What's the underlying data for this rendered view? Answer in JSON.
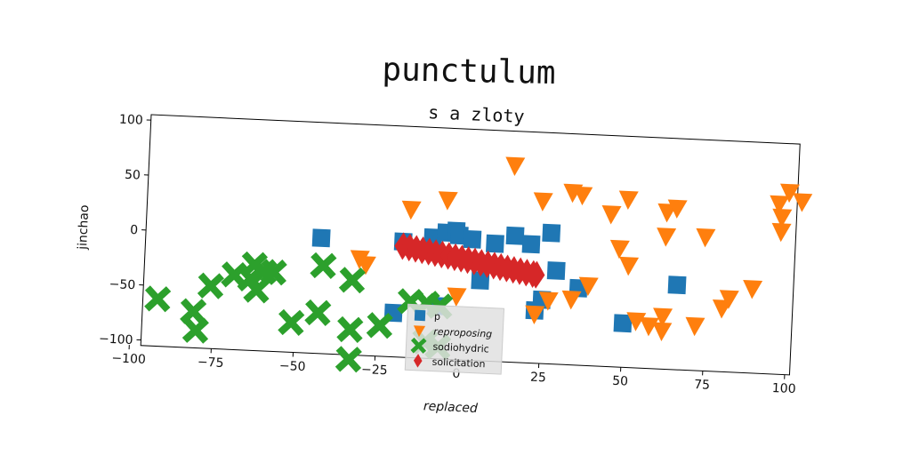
{
  "chart_data": {
    "type": "scatter",
    "suptitle": "punctulum",
    "title": "s a zloty",
    "xlabel": "replaced",
    "ylabel": "jinchao",
    "xlim": [
      -100,
      100
    ],
    "ylim": [
      -105,
      105
    ],
    "xticks": [
      -100,
      -75,
      -50,
      -25,
      0,
      25,
      50,
      75,
      100
    ],
    "yticks": [
      -100,
      -50,
      0,
      50,
      100
    ],
    "xtick_labels": [
      "−100",
      "−75",
      "−50",
      "−25",
      "0",
      "25",
      "50",
      "75",
      "100"
    ],
    "ytick_labels": [
      "−100",
      "−50",
      "0",
      "50",
      "100"
    ],
    "legend_position": "lower-center",
    "series": [
      {
        "name": "p",
        "marker": "square",
        "color": "#1f77b4",
        "points": [
          [
            -43,
            0
          ],
          [
            -18,
            0
          ],
          [
            -9,
            5
          ],
          [
            -5,
            10
          ],
          [
            -2,
            12
          ],
          [
            -1,
            8
          ],
          [
            3,
            5
          ],
          [
            10,
            2
          ],
          [
            16,
            10
          ],
          [
            21,
            3
          ],
          [
            27,
            14
          ],
          [
            29,
            -20
          ],
          [
            25,
            -47
          ],
          [
            23,
            -57
          ],
          [
            36,
            -35
          ],
          [
            -20,
            -65
          ],
          [
            -7,
            -57
          ],
          [
            6,
            -32
          ],
          [
            50,
            -65
          ],
          [
            66,
            -28
          ]
        ]
      },
      {
        "name": "reproposing",
        "marker": "triangle_down",
        "color": "#ff7f0e",
        "points": [
          [
            -31,
            -17
          ],
          [
            -29,
            -22
          ],
          [
            -16,
            30
          ],
          [
            -5,
            40
          ],
          [
            -1,
            -47
          ],
          [
            15,
            74
          ],
          [
            24,
            43
          ],
          [
            33,
            52
          ],
          [
            36,
            50
          ],
          [
            45,
            34
          ],
          [
            50,
            48
          ],
          [
            48,
            3
          ],
          [
            51,
            -12
          ],
          [
            62,
            38
          ],
          [
            65,
            42
          ],
          [
            62,
            16
          ],
          [
            74,
            17
          ],
          [
            54,
            -62
          ],
          [
            58,
            -66
          ],
          [
            62,
            -57
          ],
          [
            62,
            -70
          ],
          [
            72,
            -64
          ],
          [
            80,
            -47
          ],
          [
            82,
            -38
          ],
          [
            89,
            -28
          ],
          [
            96,
            50
          ],
          [
            97,
            38
          ],
          [
            97,
            25
          ],
          [
            99,
            61
          ],
          [
            103,
            53
          ],
          [
            23,
            -60
          ],
          [
            27,
            -47
          ],
          [
            34,
            -45
          ],
          [
            39,
            -32
          ]
        ]
      },
      {
        "name": "sodiohydric",
        "marker": "x",
        "color": "#2ca02c",
        "points": [
          [
            -92,
            -62
          ],
          [
            -81,
            -72
          ],
          [
            -80,
            -89
          ],
          [
            -76,
            -48
          ],
          [
            -69,
            -37
          ],
          [
            -64,
            -40
          ],
          [
            -63,
            -27
          ],
          [
            -62,
            -50
          ],
          [
            -60,
            -33
          ],
          [
            -57,
            -33
          ],
          [
            -51,
            -78
          ],
          [
            -43,
            -68
          ],
          [
            -42,
            -25
          ],
          [
            -33,
            -37
          ],
          [
            -33,
            -82
          ],
          [
            -33,
            -109
          ],
          [
            -24,
            -77
          ],
          [
            -15,
            -54
          ],
          [
            -10,
            -55
          ],
          [
            -6,
            -57
          ],
          [
            -10,
            -90
          ],
          [
            -6,
            -94
          ]
        ]
      },
      {
        "name": "solicitation",
        "marker": "diamond",
        "color": "#d62728",
        "points": [
          [
            -18,
            -4
          ],
          [
            -16,
            -5
          ],
          [
            -14,
            -6
          ],
          [
            -12,
            -7
          ],
          [
            -10,
            -8
          ],
          [
            -8,
            -9
          ],
          [
            -6,
            -10
          ],
          [
            -4,
            -11
          ],
          [
            -2,
            -12
          ],
          [
            0,
            -13
          ],
          [
            2,
            -14
          ],
          [
            4,
            -15
          ],
          [
            6,
            -16
          ],
          [
            8,
            -17
          ],
          [
            10,
            -18
          ],
          [
            12,
            -19
          ],
          [
            14,
            -20
          ],
          [
            16,
            -21
          ],
          [
            18,
            -22
          ],
          [
            20,
            -23
          ],
          [
            22,
            -24
          ],
          [
            23,
            -24.5
          ]
        ]
      }
    ]
  }
}
